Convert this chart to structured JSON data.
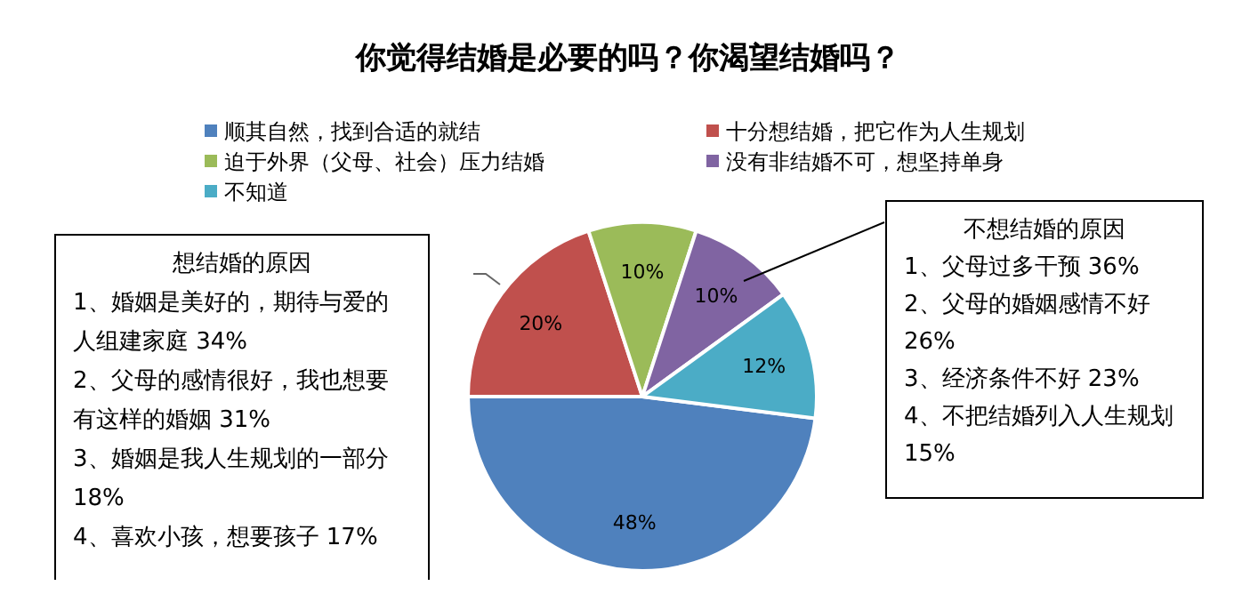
{
  "chart_data": {
    "type": "pie",
    "title": "你觉得结婚是必要的吗？你渴望结婚吗？",
    "categories": [
      "顺其自然，找到合适的就结",
      "十分想结婚，把它作为人生规划",
      "迫于外界（父母、社会）压力结婚",
      "没有非结婚不可，想坚持单身",
      "不知道"
    ],
    "values": [
      48,
      20,
      10,
      10,
      12
    ],
    "colors": [
      "#4f81bd",
      "#c0504d",
      "#9bbb59",
      "#8064a2",
      "#4bacc6"
    ],
    "value_labels": [
      "48%",
      "20%",
      "10%",
      "10%",
      "12%"
    ],
    "legend": "top",
    "annotations": [
      "想结婚的原因",
      "1、婚姻是美好的，期待与爱的人组建家庭 34%",
      "2、父母的感情很好，我也想要有这样的婚姻 31%",
      "3、婚姻是我人生规划的一部分 18%",
      "4、喜欢小孩，想要孩子 17%",
      "不想结婚的原因",
      "1、父母过多干预 36%",
      "2、父母的婚姻感情不好 26%",
      "3、经济条件不好 23%",
      "4、不把结婚列入人生规划 15%"
    ]
  }
}
